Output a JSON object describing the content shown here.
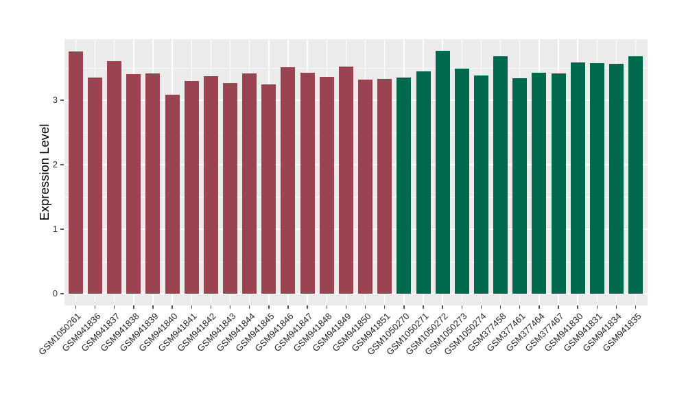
{
  "chart_data": {
    "type": "bar",
    "title": "",
    "xlabel": "",
    "ylabel": "Expression Level",
    "ylim": [
      -0.18,
      3.95
    ],
    "y_major_ticks": [
      0,
      1,
      2,
      3
    ],
    "y_minor_ticks": [
      0.5,
      1.5,
      2.5,
      3.5
    ],
    "grid": "white major/minor gridlines on gray panel",
    "legend_position": "none",
    "categories": [
      "GSM1050261",
      "GSM941836",
      "GSM941837",
      "GSM941838",
      "GSM941839",
      "GSM941840",
      "GSM941841",
      "GSM941842",
      "GSM941843",
      "GSM941844",
      "GSM941845",
      "GSM941846",
      "GSM941847",
      "GSM941848",
      "GSM941849",
      "GSM941850",
      "GSM941851",
      "GSM1050270",
      "GSM1050271",
      "GSM1050272",
      "GSM1050273",
      "GSM1050274",
      "GSM377458",
      "GSM377461",
      "GSM377464",
      "GSM377467",
      "GSM941830",
      "GSM941831",
      "GSM941834",
      "GSM941835"
    ],
    "values": [
      3.76,
      3.35,
      3.61,
      3.4,
      3.42,
      3.09,
      3.3,
      3.37,
      3.27,
      3.41,
      3.25,
      3.51,
      3.43,
      3.36,
      3.52,
      3.32,
      3.33,
      3.35,
      3.45,
      3.77,
      3.49,
      3.38,
      3.68,
      3.34,
      3.43,
      3.42,
      3.59,
      3.57,
      3.56,
      3.68
    ],
    "groups": [
      "group1",
      "group1",
      "group1",
      "group1",
      "group1",
      "group1",
      "group1",
      "group1",
      "group1",
      "group1",
      "group1",
      "group1",
      "group1",
      "group1",
      "group1",
      "group1",
      "group1",
      "group2",
      "group2",
      "group2",
      "group2",
      "group2",
      "group2",
      "group2",
      "group2",
      "group2",
      "group2",
      "group2",
      "group2",
      "group2"
    ],
    "group_colors": {
      "group1": "#9A4452",
      "group2": "#00684C"
    }
  },
  "style": {
    "background": "#FFFFFF",
    "panel_background": "#EBEBEB",
    "grid_color": "#FFFFFF",
    "axis_text_color": "#333333",
    "axis_title_color": "#000000",
    "tick_mark_color": "#555555"
  }
}
